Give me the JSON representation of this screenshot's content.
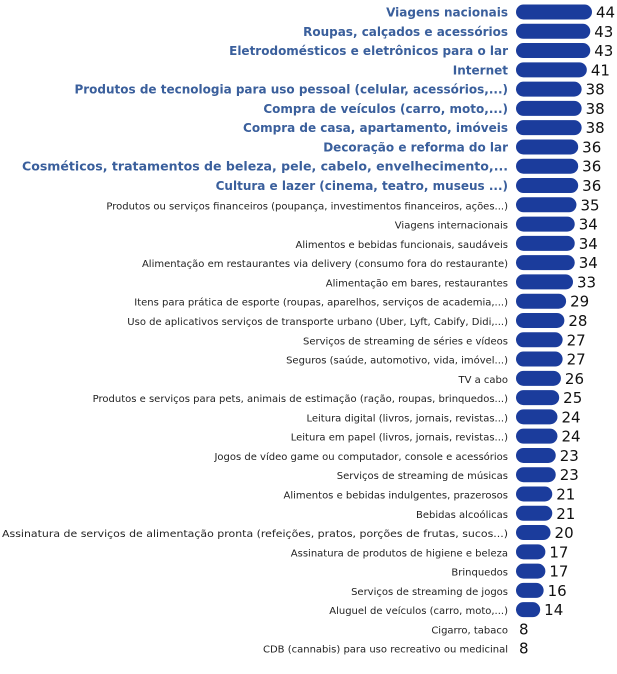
{
  "colors": {
    "bar": "#1b3c9c",
    "bold_label": "#3a5f9c",
    "label": "#222222",
    "value": "#111111"
  },
  "chart_data": {
    "type": "bar",
    "orientation": "horizontal",
    "title": "",
    "xlabel": "",
    "ylabel": "",
    "xlim": [
      0,
      44
    ],
    "grid": false,
    "legend": "none",
    "bold_top_n": 10,
    "categories": [
      "Viagens nacionais",
      "Roupas, calçados e acessórios",
      "Eletrodomésticos e eletrônicos para o lar",
      "Internet",
      "Produtos de tecnologia para uso pessoal (celular, acessórios,...)",
      "Compra de veículos (carro, moto,...)",
      "Compra de casa, apartamento, imóveis",
      "Decoração e reforma do lar",
      "Cosméticos, tratamentos de beleza, pele, cabelo, envelhecimento,...",
      "Cultura e lazer (cinema, teatro, museus ...)",
      "Produtos ou serviços financeiros (poupança, investimentos financeiros, ações...)",
      "Viagens internacionais",
      "Alimentos e bebidas funcionais, saudáveis",
      "Alimentação em restaurantes via delivery (consumo fora do restaurante)",
      "Alimentação em bares, restaurantes",
      "Itens para prática de esporte (roupas, aparelhos, serviços de academia,...)",
      "Uso de aplicativos serviços de transporte urbano (Uber, Lyft, Cabify, Didi,...)",
      "Serviços de streaming de séries e vídeos",
      "Seguros (saúde, automotivo, vida, imóvel...)",
      "TV a cabo",
      "Produtos e serviços para pets, animais de estimação (ração, roupas, brinquedos...)",
      "Leitura digital (livros, jornais, revistas...)",
      "Leitura em papel (livros, jornais, revistas...)",
      "Jogos de vídeo game ou computador, console e acessórios",
      "Serviços de streaming de músicas",
      "Alimentos e bebidas indulgentes, prazerosos",
      "Bebidas alcoólicas",
      "Assinatura de serviços de alimentação pronta (refeições, pratos, porções de frutas, sucos...)",
      "Assinatura de produtos de higiene e beleza",
      "Brinquedos",
      "Serviços de streaming de jogos",
      "Aluguel de veículos (carro, moto,...)",
      "Cigarro, tabaco",
      "CDB (cannabis) para uso recreativo ou medicinal"
    ],
    "values": [
      44,
      43,
      43,
      41,
      38,
      38,
      38,
      36,
      36,
      36,
      35,
      34,
      34,
      34,
      33,
      29,
      28,
      27,
      27,
      26,
      25,
      24,
      24,
      23,
      23,
      21,
      21,
      20,
      17,
      17,
      16,
      14,
      8,
      8
    ]
  }
}
